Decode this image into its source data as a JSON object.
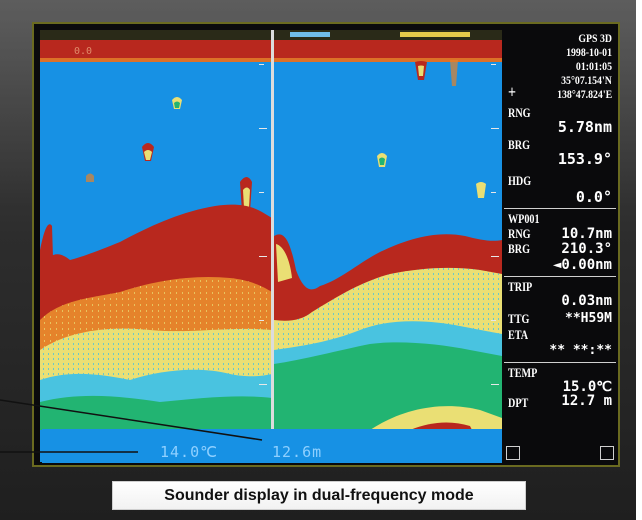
{
  "sidebar": {
    "gps_status": "GPS 3D",
    "date": "1998-10-01",
    "time": "01:01:05",
    "latitude": "35°07.154'N",
    "longitude": "138°47.824'E",
    "position_marker": "+",
    "rng_label": "RNG",
    "rng_value": "5.78nm",
    "brg_label": "BRG",
    "brg_value": "153.9°",
    "hdg_label": "HDG",
    "hdg_value": "0.0°",
    "waypoint_label": "WP001",
    "wp_rng_label": "RNG",
    "wp_rng_value": "10.7nm",
    "wp_brg_label": "BRG",
    "wp_brg_value": "210.3°",
    "wp_xte_value": "◄0.00nm",
    "trip_label": "TRIP",
    "trip_value": "0.03nm",
    "ttg_label": "TTG",
    "ttg_value": "**H59M",
    "eta_label": "ETA",
    "eta_value": "** **:**",
    "temp_label": "TEMP",
    "temp_value": "15.0℃",
    "dpt_label": "DPT",
    "dpt_value": "12.7 m"
  },
  "status_bar": {
    "water_temp": "14.0℃",
    "depth": "12.6m",
    "range_start": "0.0"
  },
  "caption": "Sounder display in dual-frequency mode",
  "colors": {
    "water": "#1791e4",
    "bottom_red": "#b8281e",
    "orange": "#e5832b",
    "yellow": "#eadf74",
    "green": "#22b472",
    "cyan": "#49c3e0"
  }
}
